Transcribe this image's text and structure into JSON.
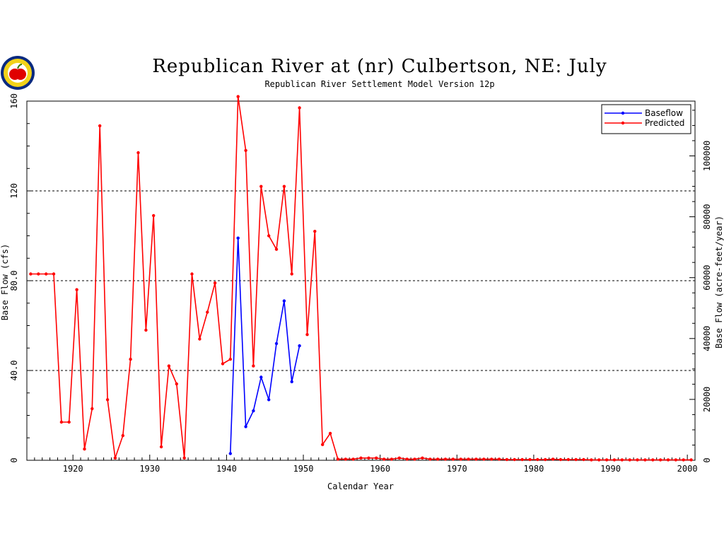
{
  "chart_data": {
    "type": "line",
    "title": "Republican River at (nr) Culbertson, NE: July",
    "subtitle": "Republican River Settlement Model Version 12p",
    "xlabel": "Calendar Year",
    "ylabel": "Base Flow (cfs)",
    "y2label": "Base Flow (acre-feet/year)",
    "xlim": [
      1914,
      2001
    ],
    "ylim": [
      0,
      160
    ],
    "y2lim": [
      0,
      118000
    ],
    "x_ticks": [
      1920,
      1930,
      1940,
      1950,
      1960,
      1970,
      1980,
      1990,
      2000
    ],
    "y_ticks": [
      "0",
      "40.0",
      "80.0",
      "120",
      "160"
    ],
    "y_tick_values": [
      0,
      40,
      80,
      120,
      160
    ],
    "y2_ticks": [
      "0",
      "20000",
      "40000",
      "60000",
      "80000",
      "100000"
    ],
    "y2_tick_values": [
      0,
      20000,
      40000,
      60000,
      80000,
      100000
    ],
    "grid": "horizontal dashed",
    "legend_position": "top-right",
    "series": [
      {
        "name": "Baseflow",
        "color": "#0000ff",
        "points": [
          [
            1940.5,
            3
          ],
          [
            1941.5,
            99
          ],
          [
            1942.5,
            15
          ],
          [
            1943.5,
            22
          ],
          [
            1944.5,
            37
          ],
          [
            1945.5,
            27
          ],
          [
            1946.5,
            52
          ],
          [
            1947.5,
            71
          ],
          [
            1948.5,
            35
          ],
          [
            1949.5,
            51
          ]
        ]
      },
      {
        "name": "Predicted",
        "color": "#ff0000",
        "points": [
          [
            1914.5,
            83
          ],
          [
            1915.5,
            83
          ],
          [
            1916.5,
            83
          ],
          [
            1917.5,
            83
          ],
          [
            1918.5,
            17
          ],
          [
            1919.5,
            17
          ],
          [
            1920.5,
            76
          ],
          [
            1921.5,
            5
          ],
          [
            1922.5,
            23
          ],
          [
            1923.5,
            149
          ],
          [
            1924.5,
            27
          ],
          [
            1925.5,
            1
          ],
          [
            1926.5,
            11
          ],
          [
            1927.5,
            45
          ],
          [
            1928.5,
            137
          ],
          [
            1929.5,
            58
          ],
          [
            1930.5,
            109
          ],
          [
            1931.5,
            6
          ],
          [
            1932.5,
            42
          ],
          [
            1933.5,
            34
          ],
          [
            1934.5,
            1
          ],
          [
            1935.5,
            83
          ],
          [
            1936.5,
            54
          ],
          [
            1937.5,
            66
          ],
          [
            1938.5,
            79
          ],
          [
            1939.5,
            43
          ],
          [
            1940.5,
            45
          ],
          [
            1941.5,
            162
          ],
          [
            1942.5,
            138
          ],
          [
            1943.5,
            42
          ],
          [
            1944.5,
            122
          ],
          [
            1945.5,
            100
          ],
          [
            1946.5,
            94
          ],
          [
            1947.5,
            122
          ],
          [
            1948.5,
            83
          ],
          [
            1949.5,
            157
          ],
          [
            1950.5,
            56
          ],
          [
            1951.5,
            102
          ],
          [
            1952.5,
            7
          ],
          [
            1953.5,
            12
          ],
          [
            1954.5,
            0.5
          ],
          [
            1955.5,
            0.5
          ],
          [
            1956.5,
            0.5
          ],
          [
            1957.5,
            1
          ],
          [
            1958.5,
            1
          ],
          [
            1959.5,
            1
          ],
          [
            1960.5,
            0.5
          ],
          [
            1961.5,
            0.5
          ],
          [
            1962.5,
            1
          ],
          [
            1963.5,
            0.5
          ],
          [
            1964.5,
            0.5
          ],
          [
            1965.5,
            1
          ],
          [
            1966.5,
            0.5
          ],
          [
            1967.5,
            0.5
          ],
          [
            1968.5,
            0.5
          ],
          [
            1969.5,
            0.5
          ],
          [
            1970.5,
            0.5
          ],
          [
            1971.5,
            0.5
          ],
          [
            1972.5,
            0.5
          ],
          [
            1973.5,
            0.5
          ],
          [
            1974.5,
            0.5
          ],
          [
            1975.5,
            0.5
          ],
          [
            1976.5,
            0.3
          ],
          [
            1977.5,
            0.3
          ],
          [
            1978.5,
            0.3
          ],
          [
            1979.5,
            0.3
          ],
          [
            1980.5,
            0.3
          ],
          [
            1981.5,
            0.3
          ],
          [
            1982.5,
            0.5
          ],
          [
            1983.5,
            0.3
          ],
          [
            1984.5,
            0.3
          ],
          [
            1985.5,
            0.3
          ],
          [
            1986.5,
            0.3
          ],
          [
            1987.5,
            0.2
          ],
          [
            1988.5,
            0.2
          ],
          [
            1989.5,
            0.2
          ],
          [
            1990.5,
            0.2
          ],
          [
            1991.5,
            0.2
          ],
          [
            1992.5,
            0.2
          ],
          [
            1993.5,
            0.2
          ],
          [
            1994.5,
            0.2
          ],
          [
            1995.5,
            0.2
          ],
          [
            1996.5,
            0.2
          ],
          [
            1997.5,
            0.2
          ],
          [
            1998.5,
            0.2
          ],
          [
            1999.5,
            0.2
          ],
          [
            2000.5,
            0.2
          ]
        ]
      }
    ]
  }
}
